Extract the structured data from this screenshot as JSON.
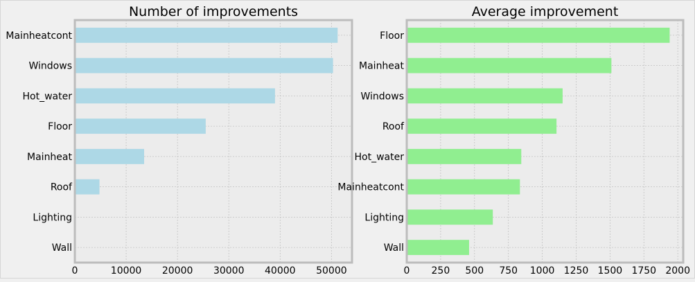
{
  "colors": {
    "figure_bg": "#f0f0f0",
    "axes_bg": "#ececec",
    "axes_edge": "#bcbcbc",
    "grid": "#c2c2c2"
  },
  "chart_data": [
    {
      "type": "bar",
      "orientation": "horizontal",
      "title": "Number of improvements",
      "xlabel": "",
      "ylabel": "",
      "categories": [
        "Mainheatcont",
        "Windows",
        "Hot_water",
        "Floor",
        "Mainheat",
        "Roof",
        "Lighting",
        "Wall"
      ],
      "values": [
        51200,
        50300,
        39000,
        25500,
        13500,
        4800,
        0,
        0
      ],
      "xlim": [
        0,
        54000
      ],
      "xticks": [
        0,
        10000,
        20000,
        30000,
        40000,
        50000
      ],
      "xtick_labels": [
        "0",
        "10000",
        "20000",
        "30000",
        "40000",
        "50000"
      ],
      "bar_color": "#add8e6",
      "grid": true
    },
    {
      "type": "bar",
      "orientation": "horizontal",
      "title": "Average improvement",
      "xlabel": "",
      "ylabel": "",
      "categories": [
        "Floor",
        "Mainheat",
        "Windows",
        "Roof",
        "Hot_water",
        "Mainheatcont",
        "Lighting",
        "Wall"
      ],
      "values": [
        1940,
        1510,
        1150,
        1105,
        845,
        835,
        635,
        460
      ],
      "xlim": [
        0,
        2040
      ],
      "xticks": [
        0,
        250,
        500,
        750,
        1000,
        1250,
        1500,
        1750,
        2000
      ],
      "xtick_labels": [
        "0",
        "250",
        "500",
        "750",
        "1000",
        "1250",
        "1500",
        "1750",
        "2000"
      ],
      "bar_color": "#90ee90",
      "grid": true
    }
  ]
}
